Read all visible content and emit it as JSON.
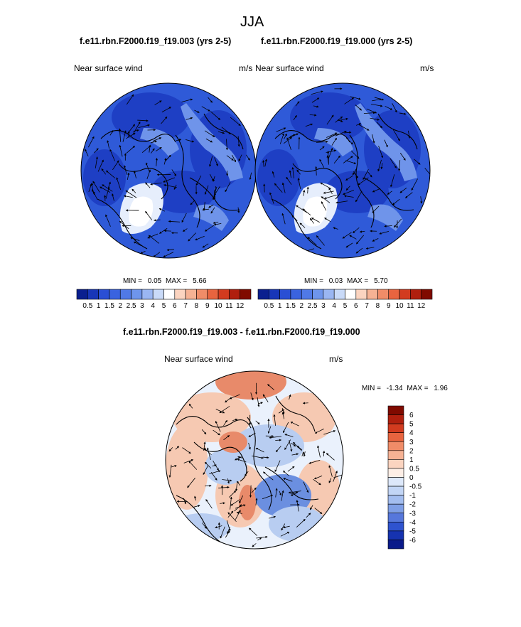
{
  "page": {
    "title": "JJA",
    "panel_left_title": "f.e11.rbn.F2000.f19_f19.003 (yrs 2-5)",
    "panel_right_title": "f.e11.rbn.F2000.f19_f19.000 (yrs 2-5)",
    "diff_title": "f.e11.rbn.F2000.f19_f19.003 - f.e11.rbn.F2000.f19_f19.000"
  },
  "colors": {
    "ocean_dark": "#1e3fc4",
    "ocean_mid": "#2f5ad8",
    "ocean_light": "#6f94ea",
    "ice_pale": "#e6eefc",
    "diff_bg": "#eaf1fc",
    "diff_pos": "#f6c9b2",
    "diff_pos_strong": "#e88a6a",
    "diff_neg": "#b8cdf1",
    "diff_neg_strong": "#6b8fe0"
  },
  "chart_data": [
    {
      "type": "heatmap",
      "projection": "north-polar-stereographic",
      "title": "f.e11.rbn.F2000.f19_f19.003 (yrs 2-5)",
      "left_label": "Near surface wind",
      "right_label": "m/s",
      "min_label": "MIN =",
      "min": "0.05",
      "max_label": "MAX =",
      "max": "5.66",
      "colorbar": {
        "orientation": "horizontal",
        "ticks": [
          "0.5",
          "1",
          "1.5",
          "2",
          "2.5",
          "3",
          "4",
          "5",
          "6",
          "7",
          "8",
          "9",
          "10",
          "11",
          "12"
        ],
        "colors": [
          "#0a1f8f",
          "#1836b8",
          "#2a4fd4",
          "#3a63df",
          "#5079e6",
          "#6e95ec",
          "#9ab6f2",
          "#c9daf8",
          "#ffffff",
          "#fbd4c0",
          "#f6b294",
          "#f08c68",
          "#e8643f",
          "#d23b1f",
          "#b01f0e",
          "#800a00"
        ]
      },
      "vectors": "near-surface wind arrows"
    },
    {
      "type": "heatmap",
      "projection": "north-polar-stereographic",
      "title": "f.e11.rbn.F2000.f19_f19.000 (yrs 2-5)",
      "left_label": "Near surface wind",
      "right_label": "m/s",
      "min_label": "MIN =",
      "min": "0.03",
      "max_label": "MAX =",
      "max": "5.70",
      "colorbar": {
        "orientation": "horizontal",
        "ticks": [
          "0.5",
          "1",
          "1.5",
          "2",
          "2.5",
          "3",
          "4",
          "5",
          "6",
          "7",
          "8",
          "9",
          "10",
          "11",
          "12"
        ],
        "colors": [
          "#0a1f8f",
          "#1836b8",
          "#2a4fd4",
          "#3a63df",
          "#5079e6",
          "#6e95ec",
          "#9ab6f2",
          "#c9daf8",
          "#ffffff",
          "#fbd4c0",
          "#f6b294",
          "#f08c68",
          "#e8643f",
          "#d23b1f",
          "#b01f0e",
          "#800a00"
        ]
      },
      "vectors": "near-surface wind arrows"
    },
    {
      "type": "heatmap",
      "projection": "north-polar-stereographic",
      "title": "f.e11.rbn.F2000.f19_f19.003 - f.e11.rbn.F2000.f19_f19.000",
      "left_label": "Near surface wind",
      "right_label": "m/s",
      "min_label": "MIN =",
      "min": "-1.34",
      "max_label": "MAX =",
      "max": "1.96",
      "colorbar": {
        "orientation": "vertical",
        "ticks": [
          "6",
          "5",
          "4",
          "3",
          "2",
          "1",
          "0.5",
          "0",
          "-0.5",
          "-1",
          "-2",
          "-3",
          "-4",
          "-5",
          "-6"
        ],
        "colors": [
          "#800a00",
          "#b01f0e",
          "#d23b1f",
          "#e8643f",
          "#f08c68",
          "#f6b294",
          "#fbd4c0",
          "#fdeee6",
          "#dde8fa",
          "#c2d5f5",
          "#a3bdef",
          "#7f9fe6",
          "#5677db",
          "#2f53cf",
          "#1633b0",
          "#0a1a8a"
        ]
      },
      "vectors": "near-surface wind difference arrows"
    }
  ]
}
